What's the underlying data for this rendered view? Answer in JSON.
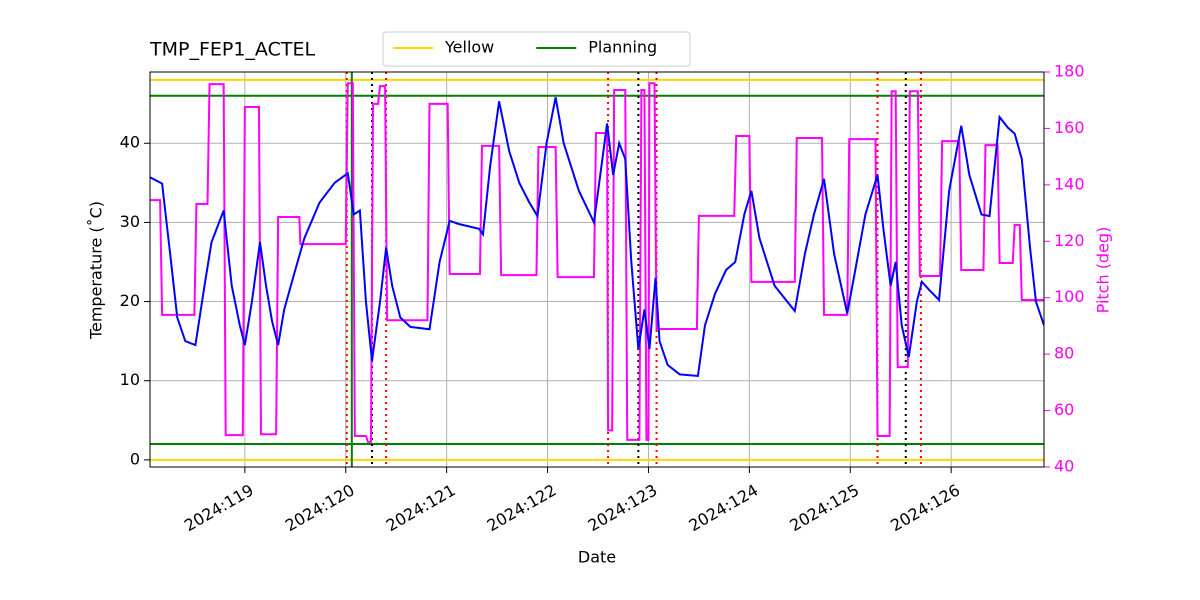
{
  "chart_data": {
    "type": "line",
    "title": "TMP_FEP1_ACTEL",
    "xlabel": "Date",
    "ylabel": "Temperature (˚C)",
    "y2label": "Pitch (deg)",
    "y2color": "#ff00ff",
    "grid": true,
    "xlim": [
      118.06,
      126.92
    ],
    "xticks": [
      {
        "value": 119,
        "label": "2024:119"
      },
      {
        "value": 120,
        "label": "2024:120"
      },
      {
        "value": 121,
        "label": "2024:121"
      },
      {
        "value": 122,
        "label": "2024:122"
      },
      {
        "value": 123,
        "label": "2024:123"
      },
      {
        "value": 124,
        "label": "2024:124"
      },
      {
        "value": 125,
        "label": "2024:125"
      },
      {
        "value": 126,
        "label": "2024:126"
      }
    ],
    "ylim": [
      -0.9,
      49
    ],
    "yticks": [
      0,
      10,
      20,
      30,
      40
    ],
    "y2lim": [
      40,
      180
    ],
    "y2ticks": [
      40,
      60,
      80,
      100,
      120,
      140,
      160,
      180
    ],
    "legend": "upper center",
    "hlines": [
      {
        "name": "Yellow",
        "color": "#ffd700",
        "values": [
          48,
          0
        ]
      },
      {
        "name": "Planning",
        "color": "#008000",
        "values": [
          46,
          2
        ]
      }
    ],
    "vlines": [
      {
        "color": "#ff0000",
        "style": "dotted",
        "x": [
          120.01,
          120.4,
          122.6,
          123.08,
          125.27,
          125.7
        ]
      },
      {
        "color": "#000000",
        "style": "dotted",
        "x": [
          120.26,
          122.9,
          125.55
        ]
      },
      {
        "color": "#008000",
        "style": "solid",
        "x": [
          120.06
        ]
      }
    ],
    "series": [
      {
        "color": "#0000ff",
        "axis": "y",
        "x": [
          118.06,
          118.18,
          118.26,
          118.33,
          118.41,
          118.51,
          118.6,
          118.67,
          118.79,
          118.87,
          118.95,
          119,
          119.07,
          119.15,
          119.21,
          119.27,
          119.33,
          119.39,
          119.5,
          119.59,
          119.74,
          119.89,
          120.02,
          120.08,
          120.14,
          120.2,
          120.26,
          120.34,
          120.4,
          120.46,
          120.54,
          120.64,
          120.83,
          120.93,
          121.03,
          121.12,
          121.32,
          121.36,
          121.43,
          121.52,
          121.62,
          121.72,
          121.82,
          121.9,
          121.99,
          122.08,
          122.16,
          122.31,
          122.46,
          122.59,
          122.65,
          122.71,
          122.77,
          122.83,
          122.9,
          122.96,
          123.01,
          123.07,
          123.11,
          123.19,
          123.31,
          123.49,
          123.56,
          123.66,
          123.77,
          123.86,
          123.95,
          124.02,
          124.1,
          124.25,
          124.45,
          124.55,
          124.64,
          124.74,
          124.84,
          124.97,
          125.05,
          125.15,
          125.27,
          125.33,
          125.4,
          125.45,
          125.51,
          125.58,
          125.66,
          125.71,
          125.78,
          125.88,
          125.98,
          126.1,
          126.18,
          126.3,
          126.38,
          126.48,
          126.56,
          126.63,
          126.7,
          126.78,
          126.84,
          126.92
        ],
        "values": [
          35.7,
          34.9,
          26,
          18,
          15,
          14.5,
          22,
          27.5,
          31.5,
          22,
          17,
          14.5,
          20,
          27.5,
          22,
          17.5,
          14.5,
          19,
          24,
          28,
          32.5,
          35,
          36.2,
          31,
          31.5,
          20,
          12.5,
          20,
          26.8,
          22,
          18,
          16.8,
          16.5,
          25,
          30.2,
          29.8,
          29.2,
          28.5,
          37,
          45.3,
          39,
          35,
          32.5,
          30.8,
          40,
          45.8,
          40,
          34,
          30,
          42.5,
          36,
          40,
          38,
          25,
          14,
          19,
          14,
          23,
          15,
          12,
          10.8,
          10.6,
          17,
          21,
          24,
          25,
          31,
          34,
          28,
          22,
          18.8,
          26,
          31,
          35.5,
          26,
          18.5,
          24,
          31,
          36,
          29,
          22,
          25,
          17,
          13,
          20,
          22.5,
          21.5,
          20.2,
          34,
          42.2,
          36,
          31,
          30.8,
          43.3,
          42,
          41.2,
          38,
          27,
          20,
          17
        ]
      },
      {
        "color": "#ff00ff",
        "axis": "y2",
        "x": [
          118.06,
          118.16,
          118.18,
          118.5,
          118.52,
          118.63,
          118.65,
          118.79,
          118.81,
          118.98,
          119,
          119.14,
          119.16,
          119.31,
          119.33,
          119.54,
          119.55,
          120,
          120.02,
          120.07,
          120.09,
          120.2,
          120.22,
          120.25,
          120.27,
          120.32,
          120.34,
          120.39,
          120.41,
          120.81,
          120.83,
          121.01,
          121.03,
          121.33,
          121.35,
          121.52,
          121.54,
          121.89,
          121.91,
          122.08,
          122.1,
          122.46,
          122.48,
          122.59,
          122.6,
          122.64,
          122.66,
          122.77,
          122.79,
          122.91,
          122.93,
          122.96,
          122.98,
          123,
          123.01,
          123.06,
          123.08,
          123.48,
          123.5,
          123.85,
          123.87,
          124,
          124.02,
          124.45,
          124.47,
          124.72,
          124.74,
          124.97,
          124.99,
          125.25,
          125.27,
          125.39,
          125.41,
          125.45,
          125.47,
          125.57,
          125.59,
          125.67,
          125.69,
          125.89,
          125.91,
          126.08,
          126.1,
          126.32,
          126.34,
          126.46,
          126.48,
          126.61,
          126.63,
          126.68,
          126.7,
          126.92
        ],
        "values": [
          134.6,
          134.6,
          93.9,
          93.9,
          133.2,
          133.2,
          175.7,
          175.7,
          51.3,
          51.3,
          167.6,
          167.6,
          51.6,
          51.6,
          128.6,
          128.6,
          119,
          119,
          176,
          176,
          51,
          51,
          48.9,
          48.9,
          168.7,
          168.7,
          175,
          175,
          92,
          92,
          168.7,
          168.7,
          108.4,
          108.4,
          153.8,
          153.8,
          108,
          108,
          153.4,
          153.4,
          107.3,
          107.3,
          158.4,
          158.4,
          53,
          53,
          173.6,
          173.6,
          49.6,
          49.6,
          173.6,
          173.6,
          49.6,
          49.6,
          176,
          176,
          88.9,
          88.9,
          129,
          129,
          157.3,
          157.3,
          105.6,
          105.6,
          156.6,
          156.6,
          93.9,
          93.9,
          156.2,
          156.2,
          51,
          51,
          173.2,
          173.2,
          75.4,
          75.4,
          173.2,
          173.2,
          107.7,
          107.7,
          155.5,
          155.5,
          109.8,
          109.8,
          154.1,
          154.1,
          112.3,
          112.3,
          125.8,
          125.8,
          99.2,
          99.2
        ]
      }
    ]
  }
}
